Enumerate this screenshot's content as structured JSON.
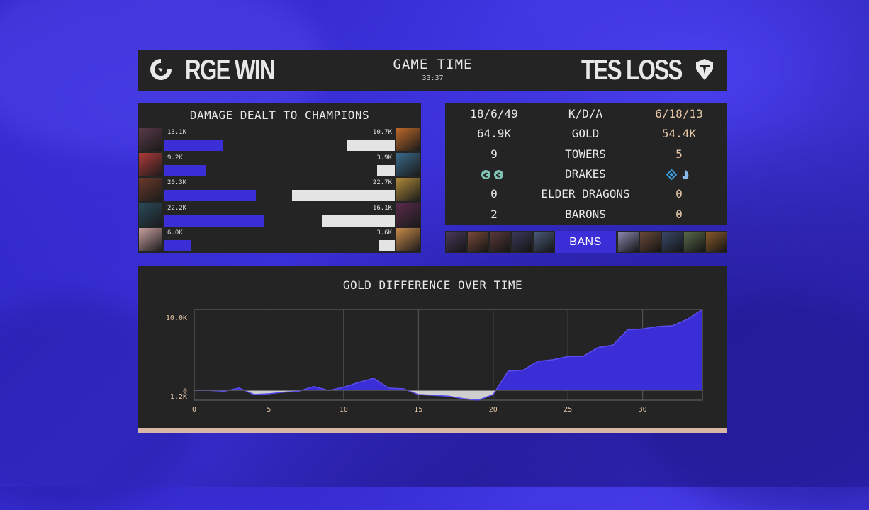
{
  "header": {
    "left_team": "RGE WIN",
    "right_team": "TES LOSS",
    "game_time_label": "GAME TIME",
    "game_time": "33:37",
    "left_logo_icon": "rge-logo-icon",
    "right_logo_icon": "tes-logo-icon"
  },
  "damage": {
    "title": "DAMAGE DEALT TO CHAMPIONS",
    "rows": [
      {
        "left": "13.1K",
        "left_value": 13.1,
        "right": "10.7K",
        "right_value": 10.7,
        "left_color": "#5a3a48",
        "right_color": "#c06a2a"
      },
      {
        "left": "9.2K",
        "left_value": 9.2,
        "right": "3.9K",
        "right_value": 3.9,
        "left_color": "#b03a3a",
        "right_color": "#3a6a8a"
      },
      {
        "left": "20.3K",
        "left_value": 20.3,
        "right": "22.7K",
        "right_value": 22.7,
        "left_color": "#6a3a2a",
        "right_color": "#b08a3a"
      },
      {
        "left": "22.2K",
        "left_value": 22.2,
        "right": "16.1K",
        "right_value": 16.1,
        "left_color": "#2a4a5a",
        "right_color": "#5a2a4a"
      },
      {
        "left": "6.0K",
        "left_value": 6.0,
        "right": "3.6K",
        "right_value": 3.6,
        "left_color": "#c8a0a0",
        "right_color": "#c88a4a"
      }
    ],
    "left_color": "#3b2ed6",
    "right_color": "#e4e4e4"
  },
  "stats": {
    "rows": [
      {
        "left": "18/6/49",
        "label": "K/D/A",
        "right": "6/18/13"
      },
      {
        "left": "64.9K",
        "label": "GOLD",
        "right": "54.4K"
      },
      {
        "left": "9",
        "label": "TOWERS",
        "right": "5"
      },
      {
        "left": "",
        "label": "DRAKES",
        "right": ""
      },
      {
        "left": "0",
        "label": "ELDER DRAGONS",
        "right": "0"
      },
      {
        "left": "2",
        "label": "BARONS",
        "right": "0"
      }
    ],
    "left_drakes": [
      "cloud-drake-icon",
      "cloud-drake-icon"
    ],
    "right_drakes": [
      "hextech-drake-icon",
      "infernal-drake-icon"
    ],
    "right_color": "#e6c7a8"
  },
  "bans": {
    "label": "BANS",
    "left": [
      "#4a3a5a",
      "#7a4a3a",
      "#5a3a3a",
      "#3a3a5a",
      "#4a5a7a"
    ],
    "right": [
      "#8a8ab0",
      "#6a4a3a",
      "#3a4a6a",
      "#5a6a4a",
      "#8a5a2a"
    ]
  },
  "gold_chart": {
    "title": "GOLD DIFFERENCE OVER TIME",
    "accent": "#3b2ed6",
    "negative_color": "#cfcfcf",
    "chart_data": {
      "type": "area",
      "title": "GOLD DIFFERENCE OVER TIME",
      "x_ticks": [
        "0",
        "5",
        "10",
        "15",
        "20",
        "25",
        "30"
      ],
      "y_ticks": [
        "10.0K",
        "0",
        "1.2K"
      ],
      "xlim": [
        0,
        34
      ],
      "ylim": [
        -1.2,
        10.0
      ],
      "x": [
        0,
        1,
        2,
        3,
        4,
        5,
        6,
        7,
        8,
        9,
        10,
        11,
        12,
        13,
        14,
        15,
        16,
        17,
        18,
        19,
        20,
        21,
        22,
        23,
        24,
        25,
        26,
        27,
        28,
        29,
        30,
        31,
        32,
        33,
        34
      ],
      "values": [
        0.0,
        0.0,
        -0.1,
        0.3,
        -0.5,
        -0.4,
        -0.2,
        -0.1,
        0.5,
        0.0,
        0.4,
        1.0,
        1.5,
        0.3,
        0.2,
        -0.5,
        -0.6,
        -0.7,
        -1.0,
        -1.2,
        -0.5,
        2.4,
        2.5,
        3.6,
        3.8,
        4.2,
        4.2,
        5.3,
        5.6,
        7.5,
        7.6,
        7.9,
        8.0,
        8.8,
        10.0
      ]
    }
  }
}
